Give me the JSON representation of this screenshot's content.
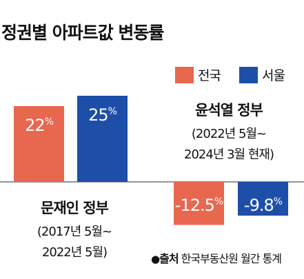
{
  "title": "정권별 아파트값 변동률",
  "colors": {
    "national": "#e8674f",
    "seoul": "#1e4fa8",
    "bg": "#ffffff",
    "axis": "#555555"
  },
  "chart_data": {
    "type": "bar",
    "title": "정권별 아파트값 변동률",
    "categories": [
      "문재인 정부",
      "윤석열 정부"
    ],
    "periods": [
      "(2017년 5월~\n2022년 5월)",
      "(2022년 5월~\n2024년 3월 현재)"
    ],
    "series": [
      {
        "name": "전국",
        "values": [
          22,
          -12.5
        ],
        "labels": [
          "22%",
          "-12.5%"
        ]
      },
      {
        "name": "서울",
        "values": [
          25,
          -9.8
        ],
        "labels": [
          "25%",
          "-9.8%"
        ]
      }
    ],
    "legend": "top-right",
    "grid": false
  },
  "groups": [
    {
      "name": "문재인 정부",
      "period_line1": "(2017년 5월~",
      "period_line2": "2022년 5월)"
    },
    {
      "name": "윤석열 정부",
      "period_line1": "(2022년 5월~",
      "period_line2": "2024년 3월 현재)"
    }
  ],
  "source": {
    "bullet": "●",
    "label": "출처",
    "text": "한국부동산원 월간 통계"
  }
}
